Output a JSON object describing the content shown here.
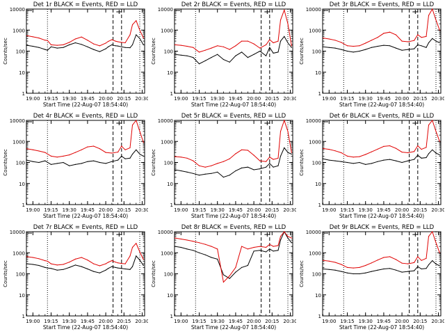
{
  "figure": {
    "xlabel": "Start Time (22-Aug-07 18:54:40)",
    "ylabel": "Counts/sec",
    "xticks": [
      "19:00",
      "19:15",
      "19:30",
      "19:45",
      "20:00",
      "20:15",
      "20:30"
    ],
    "yticks": [
      "1",
      "10",
      "100",
      "1000",
      "10000"
    ],
    "colors": {
      "events": "#000000",
      "lld": "#e00000",
      "axes": "#000000"
    }
  },
  "chart_data": [
    {
      "type": "line",
      "title": "Det 1r BLACK = Events, RED = LLD",
      "xlabel": "Start Time (22-Aug-07 18:54:40)",
      "ylabel": "Counts/sec",
      "xlim": [
        "18:54:40",
        "20:32"
      ],
      "ylim": [
        1,
        10000
      ],
      "yscale": "log",
      "x": [
        "18:55",
        "19:00",
        "19:05",
        "19:10",
        "19:12",
        "19:15",
        "19:20",
        "19:25",
        "19:30",
        "19:35",
        "19:40",
        "19:45",
        "19:50",
        "19:55",
        "20:00",
        "20:02",
        "20:05",
        "20:08",
        "20:10",
        "20:13",
        "20:16",
        "20:20",
        "20:22",
        "20:25",
        "20:28",
        "20:31"
      ],
      "series": [
        {
          "name": "Events",
          "color": "#000000",
          "values": [
            190,
            170,
            150,
            120,
            110,
            160,
            140,
            150,
            200,
            250,
            210,
            160,
            120,
            95,
            130,
            160,
            200,
            180,
            175,
            160,
            150,
            145,
            200,
            600,
            400,
            200
          ]
        },
        {
          "name": "LLD",
          "color": "#e00000",
          "values": [
            540,
            480,
            420,
            330,
            320,
            200,
            190,
            200,
            260,
            380,
            470,
            330,
            220,
            180,
            240,
            290,
            350,
            300,
            280,
            260,
            250,
            600,
            1800,
            2800,
            1000,
            420
          ]
        }
      ]
    },
    {
      "type": "line",
      "title": "Det 2r BLACK = Events, RED = LLD",
      "xlabel": "Start Time (22-Aug-07 18:54:40)",
      "ylabel": "Counts/sec",
      "xlim": [
        "18:54:40",
        "20:32"
      ],
      "ylim": [
        1,
        10000
      ],
      "yscale": "log",
      "x": [
        "18:55",
        "19:00",
        "19:05",
        "19:10",
        "19:15",
        "19:20",
        "19:25",
        "19:30",
        "19:35",
        "19:40",
        "19:45",
        "19:50",
        "19:55",
        "20:00",
        "20:05",
        "20:10",
        "20:13",
        "20:16",
        "20:20",
        "20:22",
        "20:25",
        "20:28",
        "20:31"
      ],
      "series": [
        {
          "name": "Events",
          "color": "#000000",
          "values": [
            70,
            65,
            60,
            50,
            25,
            35,
            50,
            70,
            40,
            30,
            60,
            90,
            50,
            70,
            100,
            60,
            150,
            80,
            90,
            300,
            500,
            250,
            150
          ]
        },
        {
          "name": "LLD",
          "color": "#e00000",
          "values": [
            200,
            190,
            170,
            150,
            90,
            110,
            140,
            180,
            160,
            120,
            180,
            300,
            300,
            220,
            140,
            200,
            350,
            250,
            300,
            3000,
            9000,
            2000,
            180
          ]
        }
      ]
    },
    {
      "type": "line",
      "title": "Det 3r BLACK = Events, RED = LLD",
      "xlabel": "Start Time (22-Aug-07 18:54:40)",
      "ylabel": "Counts/sec",
      "xlim": [
        "18:54:40",
        "20:32"
      ],
      "ylim": [
        1,
        10000
      ],
      "yscale": "log",
      "x": [
        "18:55",
        "19:00",
        "19:05",
        "19:10",
        "19:15",
        "19:20",
        "19:25",
        "19:30",
        "19:35",
        "19:40",
        "19:45",
        "19:50",
        "19:55",
        "20:00",
        "20:05",
        "20:10",
        "20:13",
        "20:16",
        "20:20",
        "20:22",
        "20:25",
        "20:28",
        "20:31"
      ],
      "series": [
        {
          "name": "Events",
          "color": "#000000",
          "values": [
            160,
            150,
            140,
            120,
            100,
            90,
            100,
            120,
            150,
            170,
            190,
            180,
            140,
            110,
            120,
            130,
            200,
            180,
            150,
            250,
            400,
            300,
            250
          ]
        },
        {
          "name": "LLD",
          "color": "#e00000",
          "values": [
            420,
            380,
            330,
            260,
            180,
            170,
            180,
            240,
            330,
            450,
            700,
            800,
            600,
            300,
            280,
            320,
            600,
            450,
            500,
            5000,
            10000,
            3000,
            1000
          ]
        }
      ]
    },
    {
      "type": "line",
      "title": "Det 4r BLACK = Events, RED = LLD",
      "xlabel": "Start Time (22-Aug-07 18:54:40)",
      "ylabel": "Counts/sec",
      "xlim": [
        "18:54:40",
        "20:32"
      ],
      "ylim": [
        1,
        10000
      ],
      "yscale": "log",
      "x": [
        "18:55",
        "19:00",
        "19:05",
        "19:10",
        "19:15",
        "19:20",
        "19:25",
        "19:30",
        "19:35",
        "19:40",
        "19:45",
        "19:50",
        "19:55",
        "20:00",
        "20:05",
        "20:10",
        "20:13",
        "20:16",
        "20:20",
        "20:22",
        "20:25",
        "20:28",
        "20:31"
      ],
      "series": [
        {
          "name": "Events",
          "color": "#000000",
          "values": [
            130,
            110,
            100,
            120,
            80,
            90,
            100,
            70,
            80,
            90,
            110,
            120,
            100,
            90,
            110,
            130,
            200,
            150,
            160,
            250,
            400,
            250,
            200
          ]
        },
        {
          "name": "LLD",
          "color": "#e00000",
          "values": [
            450,
            400,
            350,
            300,
            200,
            180,
            200,
            230,
            300,
            400,
            550,
            600,
            450,
            300,
            280,
            310,
            600,
            400,
            500,
            6000,
            10000,
            3000,
            900
          ]
        }
      ]
    },
    {
      "type": "line",
      "title": "Det 5r BLACK = Events, RED = LLD",
      "xlabel": "Start Time (22-Aug-07 18:54:40)",
      "ylabel": "Counts/sec",
      "xlim": [
        "18:54:40",
        "20:32"
      ],
      "ylim": [
        1,
        10000
      ],
      "yscale": "log",
      "x": [
        "18:55",
        "19:00",
        "19:05",
        "19:10",
        "19:15",
        "19:20",
        "19:25",
        "19:30",
        "19:35",
        "19:40",
        "19:45",
        "19:50",
        "19:55",
        "20:00",
        "20:05",
        "20:10",
        "20:13",
        "20:16",
        "20:20",
        "20:22",
        "20:25",
        "20:28",
        "20:31"
      ],
      "series": [
        {
          "name": "Events",
          "color": "#000000",
          "values": [
            45,
            40,
            35,
            30,
            25,
            28,
            30,
            35,
            20,
            25,
            40,
            55,
            60,
            45,
            50,
            60,
            90,
            60,
            70,
            200,
            500,
            300,
            250
          ]
        },
        {
          "name": "LLD",
          "color": "#e00000",
          "values": [
            190,
            180,
            160,
            120,
            70,
            60,
            70,
            90,
            110,
            150,
            260,
            400,
            380,
            220,
            120,
            110,
            180,
            140,
            160,
            3000,
            10000,
            3000,
            300
          ]
        }
      ]
    },
    {
      "type": "line",
      "title": "Det 6r BLACK = Events, RED = LLD",
      "xlabel": "Start Time (22-Aug-07 18:54:40)",
      "ylabel": "Counts/sec",
      "xlim": [
        "18:54:40",
        "20:32"
      ],
      "ylim": [
        1,
        10000
      ],
      "yscale": "log",
      "x": [
        "18:55",
        "19:00",
        "19:05",
        "19:10",
        "19:15",
        "19:20",
        "19:25",
        "19:30",
        "19:35",
        "19:40",
        "19:45",
        "19:50",
        "19:55",
        "20:00",
        "20:05",
        "20:10",
        "20:13",
        "20:16",
        "20:20",
        "20:22",
        "20:25",
        "20:28",
        "20:31"
      ],
      "series": [
        {
          "name": "Events",
          "color": "#000000",
          "values": [
            150,
            130,
            120,
            110,
            100,
            90,
            100,
            80,
            90,
            110,
            130,
            140,
            120,
            100,
            120,
            140,
            220,
            160,
            170,
            260,
            400,
            280,
            230
          ]
        },
        {
          "name": "LLD",
          "color": "#e00000",
          "values": [
            460,
            420,
            360,
            290,
            200,
            180,
            190,
            240,
            320,
            430,
            580,
            620,
            470,
            310,
            290,
            330,
            620,
            420,
            520,
            6000,
            10000,
            3000,
            1000
          ]
        }
      ]
    },
    {
      "type": "line",
      "title": "Det 7r BLACK = Events, RED = LLD",
      "xlabel": "Start Time (22-Aug-07 18:54:40)",
      "ylabel": "Counts/sec",
      "xlim": [
        "18:54:40",
        "20:32"
      ],
      "ylim": [
        1,
        10000
      ],
      "yscale": "log",
      "x": [
        "18:55",
        "19:00",
        "19:05",
        "19:10",
        "19:12",
        "19:15",
        "19:20",
        "19:25",
        "19:30",
        "19:35",
        "19:40",
        "19:45",
        "19:50",
        "19:55",
        "20:00",
        "20:02",
        "20:05",
        "20:08",
        "20:10",
        "20:13",
        "20:16",
        "20:20",
        "20:22",
        "20:25",
        "20:28",
        "20:31"
      ],
      "series": [
        {
          "name": "Events",
          "color": "#000000",
          "values": [
            300,
            280,
            250,
            200,
            190,
            180,
            150,
            160,
            200,
            260,
            220,
            170,
            130,
            110,
            150,
            180,
            220,
            200,
            190,
            180,
            170,
            160,
            220,
            700,
            450,
            250
          ]
        },
        {
          "name": "LLD",
          "color": "#e00000",
          "values": [
            650,
            600,
            520,
            420,
            400,
            300,
            260,
            280,
            360,
            500,
            600,
            450,
            300,
            240,
            300,
            350,
            420,
            360,
            330,
            310,
            300,
            700,
            1800,
            2800,
            1100,
            480
          ]
        }
      ]
    },
    {
      "type": "line",
      "title": "Det 8r BLACK = Events, RED = LLD",
      "xlabel": "Start Time (22-Aug-07 18:54:40)",
      "ylabel": "Counts/sec",
      "xlim": [
        "18:54:40",
        "20:32"
      ],
      "ylim": [
        1,
        10000
      ],
      "yscale": "log",
      "x": [
        "18:55",
        "19:00",
        "19:05",
        "19:10",
        "19:15",
        "19:20",
        "19:25",
        "19:30",
        "19:35",
        "19:40",
        "19:45",
        "19:50",
        "19:55",
        "20:00",
        "20:05",
        "20:10",
        "20:13",
        "20:16",
        "20:20",
        "20:22",
        "20:25",
        "20:28",
        "20:31"
      ],
      "series": [
        {
          "name": "Events",
          "color": "#000000",
          "values": [
            2000,
            1800,
            1500,
            1300,
            1000,
            800,
            600,
            500,
            90,
            60,
            120,
            200,
            250,
            1200,
            1300,
            1100,
            1500,
            1200,
            1300,
            4000,
            10000,
            5000,
            3000
          ]
        },
        {
          "name": "LLD",
          "color": "#e00000",
          "values": [
            5000,
            4500,
            4000,
            3500,
            3000,
            2500,
            2000,
            1500,
            40,
            80,
            200,
            2000,
            1500,
            1800,
            2000,
            1800,
            2500,
            2000,
            2200,
            6000,
            10000,
            6000,
            5000
          ]
        }
      ]
    },
    {
      "type": "line",
      "title": "Det 9r BLACK = Events, RED = LLD",
      "xlabel": "Start Time (22-Aug-07 18:54:40)",
      "ylabel": "Counts/sec",
      "xlim": [
        "18:54:40",
        "20:32"
      ],
      "ylim": [
        1,
        10000
      ],
      "yscale": "log",
      "x": [
        "18:55",
        "19:00",
        "19:05",
        "19:10",
        "19:15",
        "19:20",
        "19:25",
        "19:30",
        "19:35",
        "19:40",
        "19:45",
        "19:50",
        "19:55",
        "20:00",
        "20:05",
        "20:10",
        "20:13",
        "20:16",
        "20:20",
        "20:22",
        "20:25",
        "20:28",
        "20:31"
      ],
      "series": [
        {
          "name": "Events",
          "color": "#000000",
          "values": [
            170,
            160,
            150,
            130,
            110,
            100,
            100,
            110,
            130,
            150,
            170,
            180,
            150,
            120,
            130,
            140,
            220,
            170,
            180,
            270,
            420,
            290,
            240
          ]
        },
        {
          "name": "LLD",
          "color": "#e00000",
          "values": [
            430,
            400,
            350,
            280,
            200,
            190,
            200,
            250,
            330,
            450,
            600,
            650,
            480,
            320,
            300,
            340,
            650,
            430,
            540,
            6000,
            10000,
            3000,
            1000
          ]
        }
      ]
    }
  ]
}
